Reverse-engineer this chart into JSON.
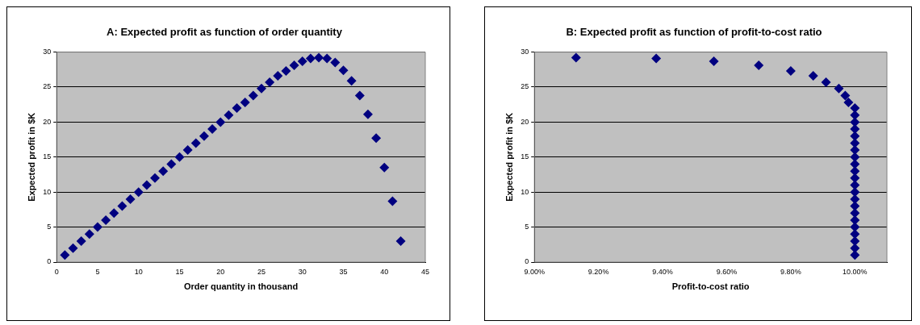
{
  "chart_data": [
    {
      "type": "scatter",
      "title": "A: Expected profit as function of order quantity",
      "xlabel": "Order quantity in thousand",
      "ylabel": "Expected profit in $K",
      "marker": "diamond",
      "grid": "y",
      "series": [
        {
          "color": "#000080",
          "x": [
            1,
            2,
            3,
            4,
            5,
            6,
            7,
            8,
            9,
            10,
            11,
            12,
            13,
            14,
            15,
            16,
            17,
            18,
            19,
            20,
            21,
            22,
            23,
            24,
            25,
            26,
            27,
            28,
            29,
            30,
            31,
            32,
            33,
            34,
            35,
            36,
            37,
            38,
            39,
            40,
            41,
            42
          ],
          "values": [
            1,
            2,
            3,
            4,
            5,
            6,
            7,
            8,
            9,
            10,
            11,
            12,
            13,
            14,
            15,
            16,
            17,
            18,
            19,
            20,
            21,
            22,
            22.8,
            23.8,
            24.8,
            25.7,
            26.6,
            27.3,
            28.1,
            28.7,
            29.1,
            29.2,
            29.1,
            28.5,
            27.4,
            25.9,
            23.8,
            21.1,
            17.7,
            13.5,
            8.7,
            3.0
          ]
        }
      ],
      "xlim": [
        0,
        45
      ],
      "xticks": [
        0,
        5,
        10,
        15,
        20,
        25,
        30,
        35,
        40,
        45
      ],
      "ylim": [
        0,
        30
      ],
      "yticks": [
        0,
        5,
        10,
        15,
        20,
        25,
        30
      ]
    },
    {
      "type": "scatter",
      "title": "B: Expected profit as function of profit-to-cost ratio",
      "xlabel": "Profit-to-cost ratio",
      "ylabel": "Expected profit in $K",
      "marker": "diamond",
      "grid": "y",
      "series": [
        {
          "color": "#000080",
          "x": [
            10.0,
            10.0,
            10.0,
            10.0,
            10.0,
            10.0,
            10.0,
            10.0,
            10.0,
            10.0,
            10.0,
            10.0,
            10.0,
            10.0,
            10.0,
            10.0,
            10.0,
            10.0,
            10.0,
            10.0,
            10.0,
            10.0,
            9.98,
            9.97,
            9.95,
            9.91,
            9.87,
            9.8,
            9.7,
            9.56,
            9.38,
            9.13
          ],
          "values": [
            1,
            2,
            3,
            4,
            5,
            6,
            7,
            8,
            9,
            10,
            11,
            12,
            13,
            14,
            15,
            16,
            17,
            18,
            19,
            20,
            21,
            22,
            22.8,
            23.8,
            24.8,
            25.7,
            26.6,
            27.3,
            28.1,
            28.7,
            29.1,
            29.2
          ]
        }
      ],
      "xlim": [
        9.0,
        10.1
      ],
      "xticks": [
        {
          "value": 9.0,
          "label": "9.00%"
        },
        {
          "value": 9.2,
          "label": "9.20%"
        },
        {
          "value": 9.4,
          "label": "9.40%"
        },
        {
          "value": 9.6,
          "label": "9.60%"
        },
        {
          "value": 9.8,
          "label": "9.80%"
        },
        {
          "value": 10.0,
          "label": "10.00%"
        }
      ],
      "ylim": [
        0,
        30
      ],
      "yticks": [
        0,
        5,
        10,
        15,
        20,
        25,
        30
      ]
    }
  ]
}
